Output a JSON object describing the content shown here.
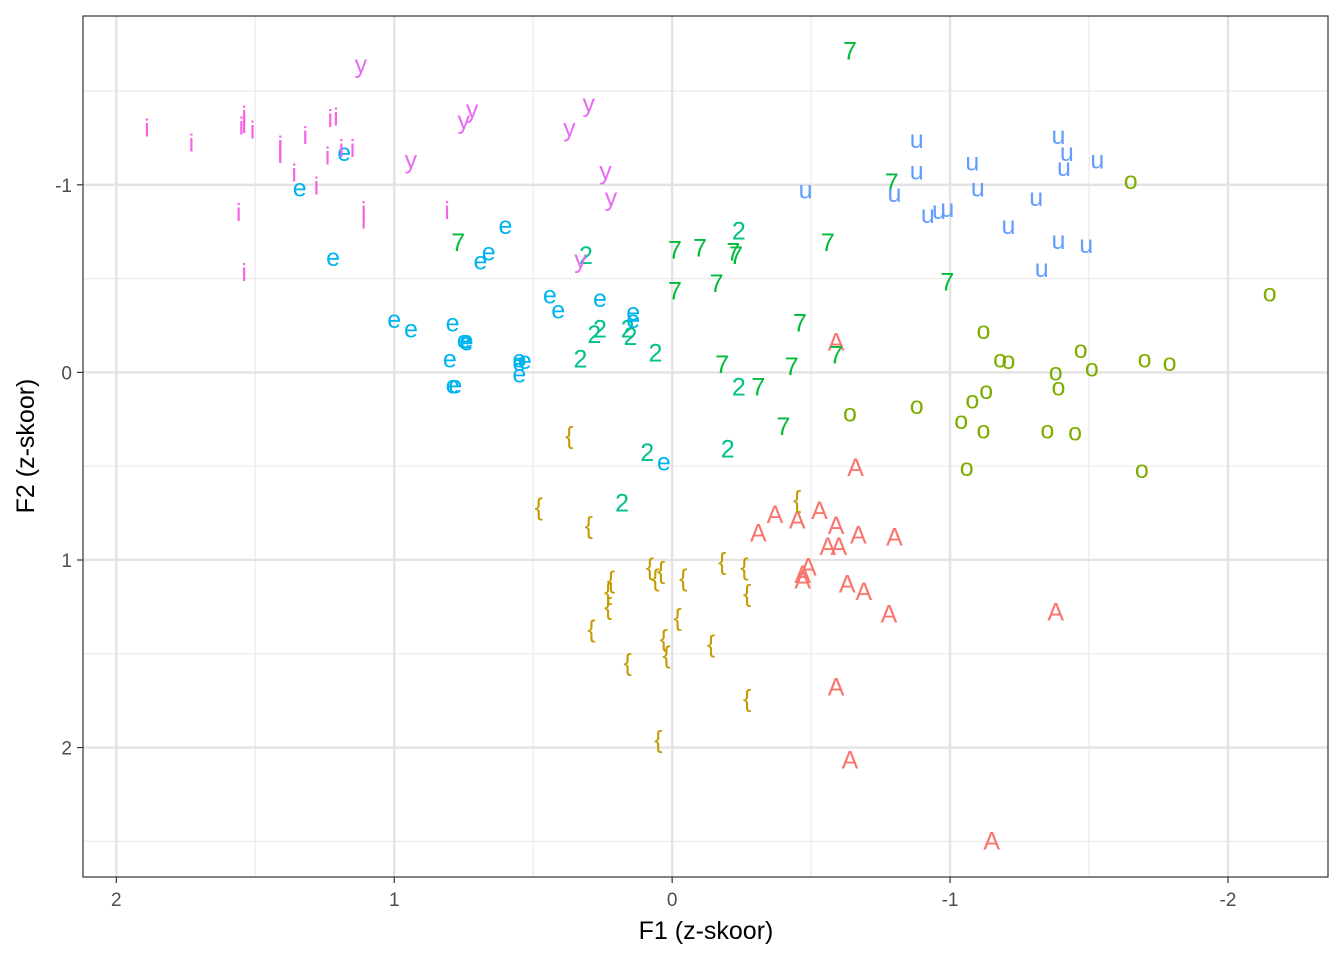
{
  "chart_data": {
    "type": "scatter",
    "title": "",
    "xlabel": "F1 (z-skoor)",
    "ylabel": "F2 (z-skoor)",
    "x_reversed": true,
    "y_reversed": true,
    "xlim": [
      2.12,
      -2.36
    ],
    "ylim": [
      -1.9,
      2.69
    ],
    "x_ticks": [
      2,
      1,
      0,
      -1,
      -2
    ],
    "x_tick_labels": [
      "2",
      "1",
      "0",
      "-1",
      "-2"
    ],
    "y_ticks": [
      -1,
      0,
      1,
      2
    ],
    "y_tick_labels": [
      "-1",
      "0",
      "1",
      "2"
    ],
    "grid": true,
    "legend": "none",
    "series": [
      {
        "name": "A",
        "color": "#F8766D",
        "points": [
          [
            -0.59,
            -0.16
          ],
          [
            -0.66,
            0.51
          ],
          [
            -0.37,
            0.76
          ],
          [
            -0.45,
            0.79
          ],
          [
            -0.53,
            0.74
          ],
          [
            -0.31,
            0.86
          ],
          [
            -0.59,
            0.82
          ],
          [
            -0.67,
            0.87
          ],
          [
            -0.8,
            0.88
          ],
          [
            -0.56,
            0.93
          ],
          [
            -0.6,
            0.93
          ],
          [
            -0.49,
            1.04
          ],
          [
            -0.47,
            1.08
          ],
          [
            -0.47,
            1.11
          ],
          [
            -0.63,
            1.13
          ],
          [
            -0.69,
            1.17
          ],
          [
            -0.78,
            1.29
          ],
          [
            -1.38,
            1.28
          ],
          [
            -0.59,
            1.68
          ],
          [
            -0.64,
            2.07
          ],
          [
            -1.15,
            2.5
          ]
        ]
      },
      {
        "name": "{",
        "color": "#C49A00",
        "points": [
          [
            0.37,
            0.34
          ],
          [
            0.48,
            0.72
          ],
          [
            0.3,
            0.82
          ],
          [
            0.23,
            1.17
          ],
          [
            0.23,
            1.25
          ],
          [
            0.08,
            1.04
          ],
          [
            0.04,
            1.06
          ],
          [
            0.06,
            1.1
          ],
          [
            -0.04,
            1.1
          ],
          [
            0.29,
            1.37
          ],
          [
            0.22,
            1.11
          ],
          [
            -0.02,
            1.31
          ],
          [
            0.03,
            1.42
          ],
          [
            -0.14,
            1.45
          ],
          [
            -0.18,
            1.01
          ],
          [
            -0.26,
            1.04
          ],
          [
            -0.27,
            1.18
          ],
          [
            -0.45,
            0.68
          ],
          [
            0.16,
            1.55
          ],
          [
            0.02,
            1.51
          ],
          [
            -0.27,
            1.74
          ],
          [
            0.05,
            1.96
          ]
        ]
      },
      {
        "name": "o",
        "color": "#7CAE00",
        "points": [
          [
            -1.65,
            -1.02
          ],
          [
            -2.15,
            -0.42
          ],
          [
            -1.12,
            -0.22
          ],
          [
            -1.18,
            -0.07
          ],
          [
            -1.21,
            -0.06
          ],
          [
            -1.47,
            -0.12
          ],
          [
            -1.7,
            -0.07
          ],
          [
            -1.79,
            -0.05
          ],
          [
            -1.51,
            -0.02
          ],
          [
            -1.38,
            0.0
          ],
          [
            -1.39,
            0.08
          ],
          [
            -1.13,
            0.1
          ],
          [
            -1.08,
            0.15
          ],
          [
            -0.88,
            0.18
          ],
          [
            -0.64,
            0.22
          ],
          [
            -1.04,
            0.26
          ],
          [
            -1.12,
            0.31
          ],
          [
            -1.35,
            0.31
          ],
          [
            -1.45,
            0.32
          ],
          [
            -1.06,
            0.51
          ],
          [
            -1.69,
            0.52
          ]
        ]
      },
      {
        "name": "7",
        "color": "#00BA38",
        "points": [
          [
            -0.64,
            -1.71
          ],
          [
            -0.79,
            -1.01
          ],
          [
            -0.56,
            -0.69
          ],
          [
            -0.99,
            -0.48
          ],
          [
            -0.22,
            -0.64
          ],
          [
            -0.1,
            -0.66
          ],
          [
            -0.01,
            -0.65
          ],
          [
            -0.16,
            -0.47
          ],
          [
            0.77,
            -0.69
          ],
          [
            -0.23,
            -0.62
          ],
          [
            -0.01,
            -0.43
          ],
          [
            -0.46,
            -0.26
          ],
          [
            -0.59,
            -0.09
          ],
          [
            -0.18,
            -0.04
          ],
          [
            -0.43,
            -0.03
          ],
          [
            -0.31,
            0.08
          ],
          [
            -0.4,
            0.29
          ]
        ]
      },
      {
        "name": "2",
        "color": "#00C08B",
        "points": [
          [
            -0.24,
            -0.75
          ],
          [
            0.31,
            -0.62
          ],
          [
            0.28,
            -0.2
          ],
          [
            0.26,
            -0.23
          ],
          [
            0.15,
            -0.19
          ],
          [
            0.16,
            -0.23
          ],
          [
            0.33,
            -0.07
          ],
          [
            0.06,
            -0.1
          ],
          [
            -0.24,
            0.08
          ],
          [
            0.09,
            0.43
          ],
          [
            -0.2,
            0.41
          ],
          [
            0.18,
            0.7
          ]
        ]
      },
      {
        "name": "e",
        "color": "#00B4EF",
        "points": [
          [
            1.18,
            -1.17
          ],
          [
            1.34,
            -0.98
          ],
          [
            0.6,
            -0.78
          ],
          [
            0.66,
            -0.64
          ],
          [
            0.69,
            -0.59
          ],
          [
            1.22,
            -0.61
          ],
          [
            0.44,
            -0.41
          ],
          [
            0.26,
            -0.39
          ],
          [
            0.41,
            -0.33
          ],
          [
            0.14,
            -0.32
          ],
          [
            0.14,
            -0.28
          ],
          [
            1.0,
            -0.28
          ],
          [
            0.94,
            -0.23
          ],
          [
            0.79,
            -0.26
          ],
          [
            0.75,
            -0.17
          ],
          [
            0.74,
            -0.17
          ],
          [
            0.74,
            -0.16
          ],
          [
            0.8,
            -0.07
          ],
          [
            0.53,
            -0.06
          ],
          [
            0.55,
            -0.07
          ],
          [
            0.55,
            -0.05
          ],
          [
            0.78,
            0.07
          ],
          [
            0.55,
            0.01
          ],
          [
            0.03,
            0.48
          ],
          [
            0.79,
            0.07
          ]
        ]
      },
      {
        "name": "u",
        "color": "#619CFF",
        "points": [
          [
            -0.88,
            -1.24
          ],
          [
            -1.39,
            -1.26
          ],
          [
            -1.08,
            -1.12
          ],
          [
            -1.42,
            -1.17
          ],
          [
            -1.53,
            -1.13
          ],
          [
            -1.41,
            -1.09
          ],
          [
            -0.88,
            -1.07
          ],
          [
            -1.1,
            -0.98
          ],
          [
            -0.48,
            -0.97
          ],
          [
            -0.8,
            -0.95
          ],
          [
            -1.31,
            -0.93
          ],
          [
            -0.96,
            -0.86
          ],
          [
            -0.99,
            -0.87
          ],
          [
            -0.92,
            -0.84
          ],
          [
            -1.21,
            -0.78
          ],
          [
            -1.39,
            -0.7
          ],
          [
            -1.49,
            -0.68
          ],
          [
            -1.33,
            -0.55
          ]
        ]
      },
      {
        "name": "i",
        "color": "#F564E3",
        "points": [
          [
            1.89,
            -1.3
          ],
          [
            1.73,
            -1.22
          ],
          [
            1.55,
            -1.31
          ],
          [
            1.54,
            -1.32
          ],
          [
            1.54,
            -1.37
          ],
          [
            1.51,
            -1.29
          ],
          [
            1.41,
            -1.21
          ],
          [
            1.32,
            -1.26
          ],
          [
            1.23,
            -1.35
          ],
          [
            1.21,
            -1.36
          ],
          [
            1.41,
            -1.16
          ],
          [
            1.41,
            -1.18
          ],
          [
            1.24,
            -1.15
          ],
          [
            1.15,
            -1.19
          ],
          [
            1.19,
            -1.19
          ],
          [
            1.36,
            -1.06
          ],
          [
            1.28,
            -0.99
          ],
          [
            1.11,
            -0.86
          ],
          [
            1.11,
            -0.81
          ],
          [
            0.81,
            -0.86
          ],
          [
            1.56,
            -0.85
          ],
          [
            1.54,
            -0.53
          ]
        ]
      },
      {
        "name": "y",
        "color": "#B79F00",
        "points": []
      },
      {
        "name": "y",
        "color": "#E76BF3",
        "points": [
          [
            1.12,
            -1.64
          ],
          [
            0.3,
            -1.43
          ],
          [
            0.72,
            -1.4
          ],
          [
            0.75,
            -1.34
          ],
          [
            0.37,
            -1.3
          ],
          [
            0.94,
            -1.13
          ],
          [
            0.24,
            -1.07
          ],
          [
            0.22,
            -0.93
          ],
          [
            0.33,
            -0.6
          ]
        ]
      }
    ]
  }
}
